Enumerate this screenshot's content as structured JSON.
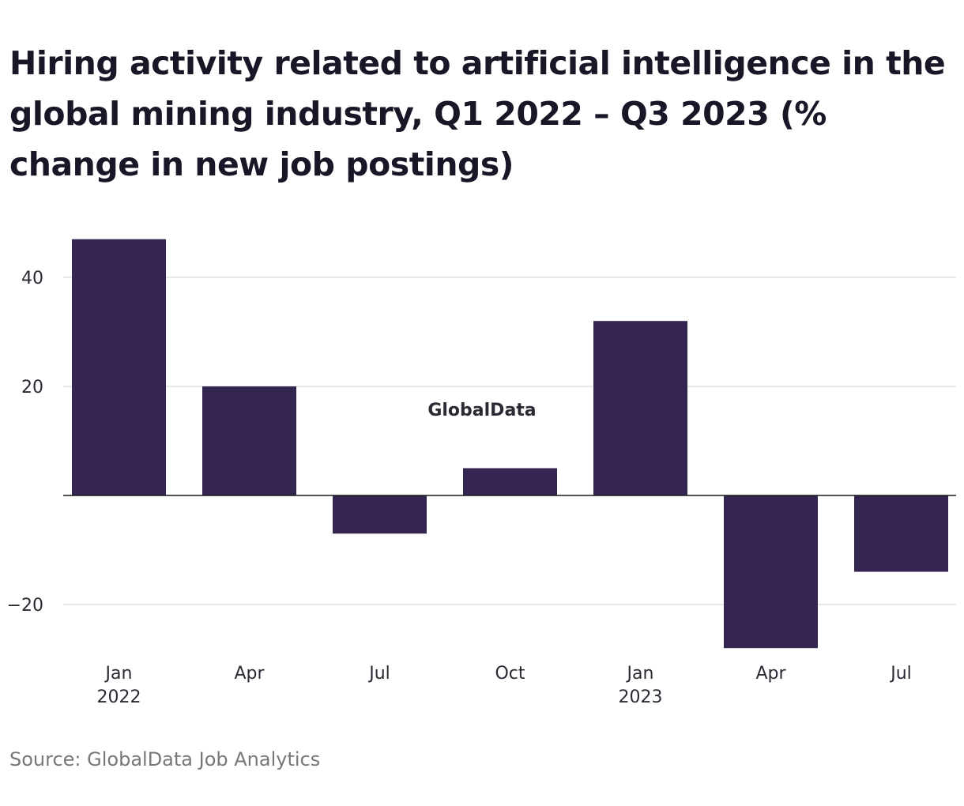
{
  "chart_data": {
    "type": "bar",
    "title": "Hiring activity related to artificial intelligence in the global mining industry, Q1 2022 – Q3 2023 (% change in new job postings)",
    "categories": [
      "Jan 2022",
      "Apr 2022",
      "Jul 2022",
      "Oct 2022",
      "Jan 2023",
      "Apr 2023",
      "Jul 2023"
    ],
    "x_tick_labels": [
      {
        "month": "Jan",
        "year": "2022"
      },
      {
        "month": "Apr",
        "year": ""
      },
      {
        "month": "Jul",
        "year": ""
      },
      {
        "month": "Oct",
        "year": ""
      },
      {
        "month": "Jan",
        "year": "2023"
      },
      {
        "month": "Apr",
        "year": ""
      },
      {
        "month": "Jul",
        "year": ""
      }
    ],
    "values": [
      47,
      20,
      -7,
      5,
      32,
      -28,
      -14
    ],
    "y_ticks": [
      40,
      20,
      -20
    ],
    "y_tick_labels": [
      "40",
      "20",
      "−20"
    ],
    "ylim": [
      -30,
      50
    ],
    "grid": true,
    "legend": "none",
    "bar_color": "#352552",
    "xlabel": "",
    "ylabel": ""
  },
  "watermark": "GlobalData",
  "source": "Source: GlobalData Job Analytics"
}
